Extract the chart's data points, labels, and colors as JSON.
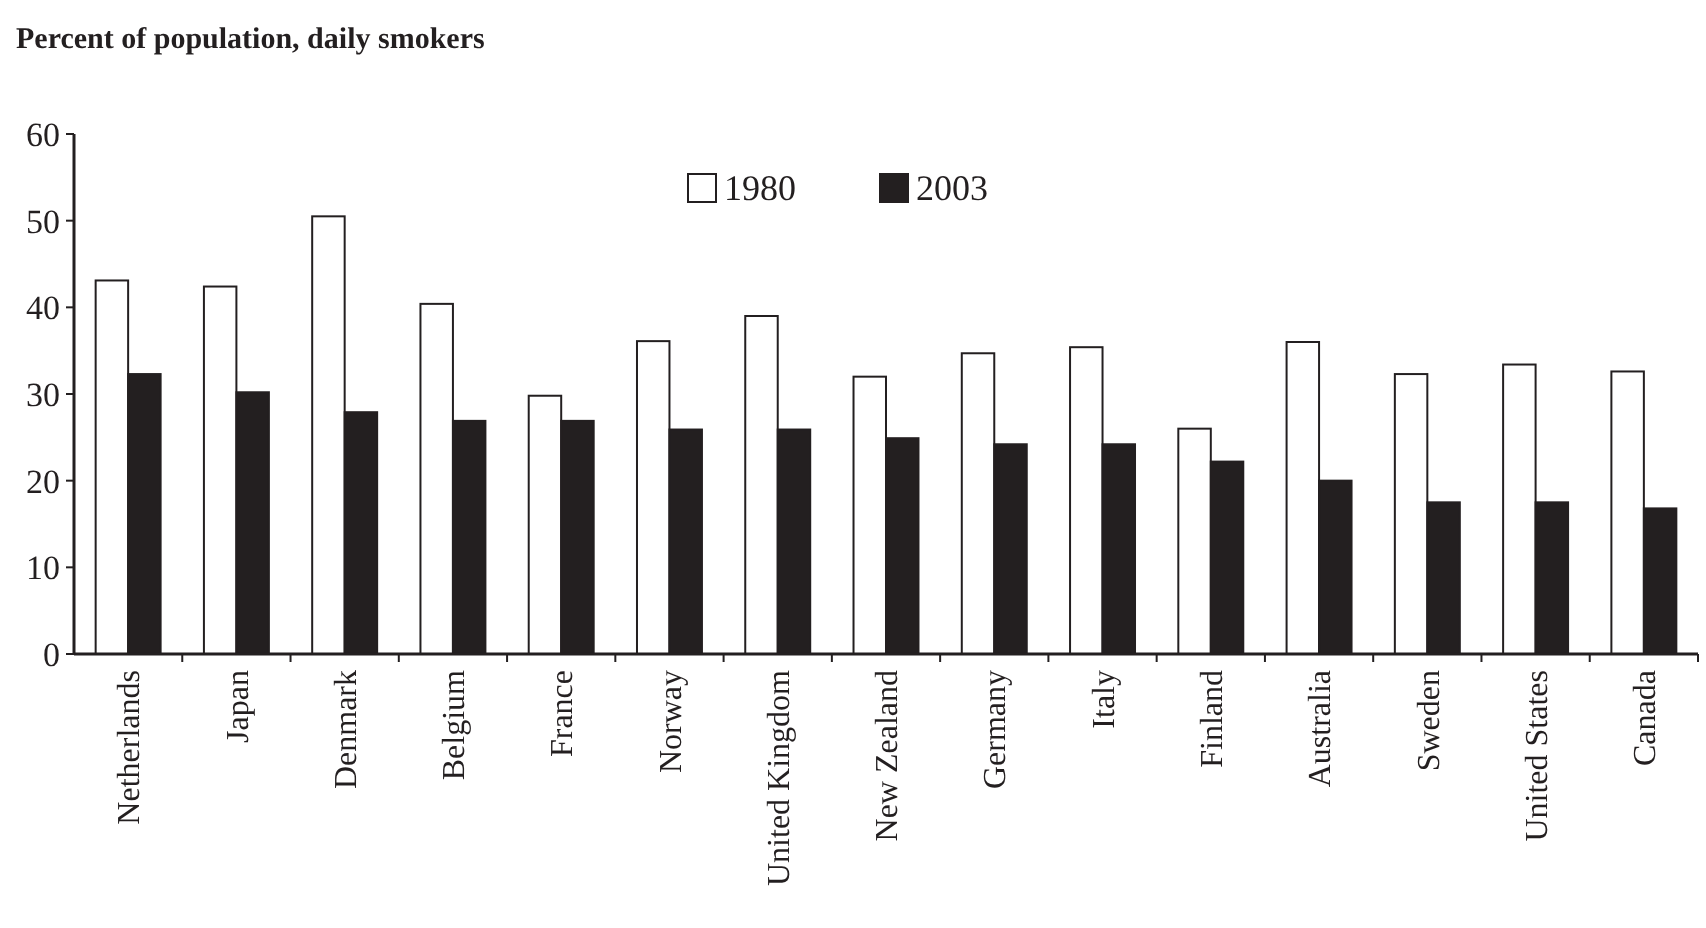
{
  "chart_data": {
    "type": "bar",
    "title": "Percent of population, daily smokers",
    "categories": [
      "Netherlands",
      "Japan",
      "Denmark",
      "Belgium",
      "France",
      "Norway",
      "United Kingdom",
      "New Zealand",
      "Germany",
      "Italy",
      "Finland",
      "Australia",
      "Sweden",
      "United States",
      "Canada"
    ],
    "series": [
      {
        "name": "1980",
        "color": "#ffffff",
        "values": [
          43.1,
          42.4,
          50.5,
          40.4,
          29.8,
          36.1,
          39.0,
          32.0,
          34.7,
          35.4,
          26.0,
          36.0,
          32.3,
          33.4,
          32.6
        ]
      },
      {
        "name": "2003",
        "color": "#231f20",
        "values": [
          32.3,
          30.2,
          27.9,
          26.9,
          26.9,
          25.9,
          25.9,
          24.9,
          24.2,
          24.2,
          22.2,
          20.0,
          17.5,
          17.5,
          16.8
        ]
      }
    ],
    "ylim": [
      0,
      60
    ],
    "yticks": [
      0,
      10,
      20,
      30,
      40,
      50,
      60
    ],
    "grid": false,
    "legend": "top"
  }
}
